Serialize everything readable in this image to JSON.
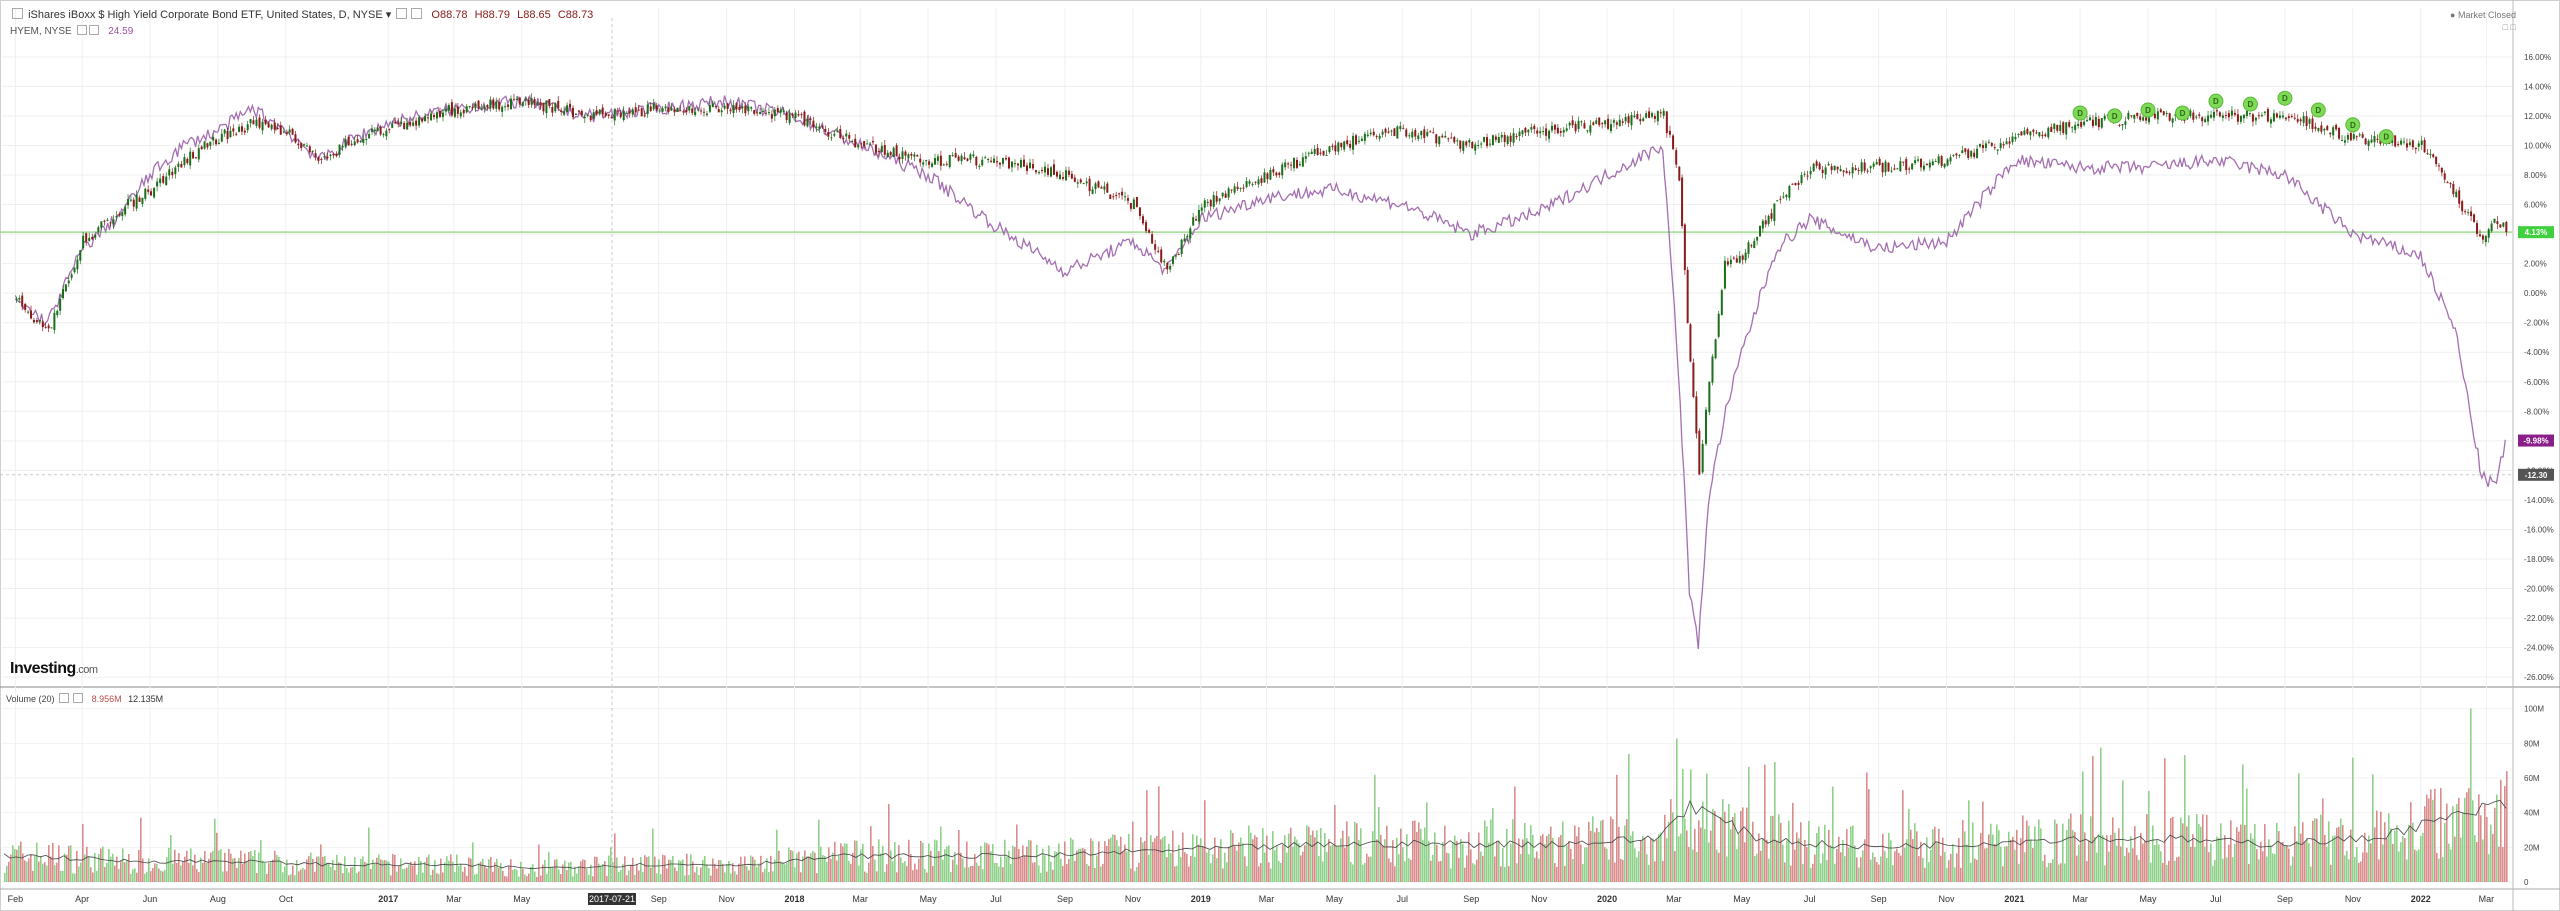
{
  "header": {
    "symbol_title": "iShares iBoxx $ High Yield Corporate Bond ETF, United States, D, NYSE",
    "open": "O88.78",
    "high": "H88.79",
    "low": "L88.65",
    "close": "C88.73",
    "compare_symbol": "HYEM, NYSE",
    "compare_value": "24.59",
    "market_status": "Market Closed"
  },
  "brand": {
    "name": "Investing",
    "domain": ".com"
  },
  "volume_header": {
    "label": "Volume (20)",
    "value": "8.956M",
    "ma": "12.135M"
  },
  "colors": {
    "up": "#1b6e1b",
    "down": "#8b1a1a",
    "compare": "#a36fb0",
    "vol_up": "#8fd18a",
    "vol_down": "#d98c8c",
    "hline": "#9edb8f",
    "dividend": "#7ed957"
  },
  "chart_data": [
    {
      "type": "line",
      "series": [
        {
          "name": "iShares iBoxx $ High Yield Corporate Bond ETF",
          "x": [
            "2016-02-01",
            "2016-03-01",
            "2016-04-01",
            "2016-05-01",
            "2016-06-01",
            "2016-07-01",
            "2016-08-01",
            "2016-09-01",
            "2016-10-01",
            "2016-11-01",
            "2016-12-01",
            "2017-01-01",
            "2017-03-01",
            "2017-05-01",
            "2017-07-01",
            "2017-09-01",
            "2017-11-01",
            "2018-01-01",
            "2018-03-01",
            "2018-05-01",
            "2018-07-01",
            "2018-09-01",
            "2018-11-01",
            "2018-12-01",
            "2019-01-01",
            "2019-03-01",
            "2019-05-01",
            "2019-07-01",
            "2019-09-01",
            "2019-11-01",
            "2020-01-01",
            "2020-02-20",
            "2020-03-05",
            "2020-03-15",
            "2020-03-23",
            "2020-04-01",
            "2020-04-15",
            "2020-05-01",
            "2020-06-01",
            "2020-07-01",
            "2020-09-01",
            "2020-11-01",
            "2021-01-01",
            "2021-03-01",
            "2021-05-01",
            "2021-07-01",
            "2021-09-01",
            "2021-11-01",
            "2022-01-01",
            "2022-02-01",
            "2022-02-25",
            "2022-03-10",
            "2022-03-18"
          ],
          "y": [
            -0.5,
            -2.5,
            3.5,
            5.5,
            7.0,
            9.0,
            10.5,
            11.5,
            11.0,
            9.0,
            10.5,
            11.0,
            12.5,
            13.0,
            12.0,
            12.5,
            12.5,
            12.0,
            10.0,
            9.0,
            9.0,
            8.0,
            6.0,
            1.5,
            6.0,
            8.0,
            10.0,
            11.0,
            10.0,
            11.0,
            11.5,
            12.0,
            8.0,
            -5.0,
            -12.0,
            -6.0,
            2.0,
            2.5,
            6.0,
            8.5,
            8.5,
            9.0,
            10.5,
            11.5,
            12.0,
            12.0,
            12.0,
            10.5,
            10.0,
            6.5,
            3.5,
            5.0,
            4.2
          ]
        },
        {
          "name": "HYEM, NYSE",
          "x": [
            "2016-02-01",
            "2016-03-01",
            "2016-04-01",
            "2016-05-01",
            "2016-06-01",
            "2016-07-01",
            "2016-08-01",
            "2016-09-01",
            "2016-10-01",
            "2016-11-01",
            "2016-12-01",
            "2017-01-01",
            "2017-03-01",
            "2017-05-01",
            "2017-07-01",
            "2017-09-01",
            "2017-11-01",
            "2018-01-01",
            "2018-03-01",
            "2018-05-01",
            "2018-07-01",
            "2018-09-01",
            "2018-11-01",
            "2018-12-01",
            "2019-01-01",
            "2019-03-01",
            "2019-05-01",
            "2019-07-01",
            "2019-09-01",
            "2019-11-01",
            "2020-01-01",
            "2020-02-20",
            "2020-03-05",
            "2020-03-15",
            "2020-03-23",
            "2020-04-01",
            "2020-04-15",
            "2020-05-01",
            "2020-06-01",
            "2020-07-01",
            "2020-09-01",
            "2020-11-01",
            "2021-01-01",
            "2021-03-01",
            "2021-05-01",
            "2021-07-01",
            "2021-09-01",
            "2021-11-01",
            "2022-01-01",
            "2022-02-01",
            "2022-02-25",
            "2022-03-10",
            "2022-03-18"
          ],
          "y": [
            -0.5,
            -2.0,
            3.0,
            5.0,
            8.0,
            10.0,
            11.0,
            12.5,
            11.0,
            9.0,
            10.5,
            11.5,
            12.5,
            13.0,
            12.0,
            12.5,
            13.0,
            12.0,
            10.0,
            8.0,
            4.5,
            1.5,
            3.5,
            1.5,
            5.0,
            6.5,
            7.0,
            6.0,
            4.0,
            5.5,
            8.0,
            10.0,
            -5.0,
            -20.0,
            -24.0,
            -14.0,
            -8.5,
            -4.0,
            3.0,
            5.0,
            3.0,
            3.5,
            9.0,
            8.5,
            8.5,
            9.0,
            8.0,
            4.0,
            2.5,
            -2.5,
            -12.5,
            -13.0,
            -10.0
          ]
        }
      ],
      "x_ticks": [
        "Feb",
        "Apr",
        "Jun",
        "Aug",
        "Oct",
        "2017",
        "Mar",
        "May",
        "Sep",
        "Nov",
        "2018",
        "Mar",
        "May",
        "Jul",
        "Sep",
        "Nov",
        "2019",
        "Mar",
        "May",
        "Jul",
        "Sep",
        "Nov",
        "2020",
        "Mar",
        "May",
        "Jul",
        "Sep",
        "Nov",
        "2021",
        "Mar",
        "May",
        "Jul",
        "Sep",
        "Nov",
        "2022",
        "Mar"
      ],
      "crosshair_label": "2017-07-21",
      "y_ticks": [
        "16.00%",
        "14.00%",
        "12.00%",
        "10.00%",
        "8.00%",
        "6.00%",
        "4.00%",
        "2.00%",
        "0.00%",
        "-2.00%",
        "-4.00%",
        "-6.00%",
        "-8.00%",
        "-10.00%",
        "-12.00%",
        "-14.00%",
        "-16.00%",
        "-18.00%",
        "-20.00%",
        "-22.00%",
        "-24.00%",
        "-26.00%"
      ],
      "ylim": [
        -26.6,
        16.6
      ],
      "grid": true,
      "horizontal_line": {
        "value": 4.13,
        "label": "4.13%"
      },
      "last_compare_label": {
        "value": -9.98,
        "label": "-9.98%"
      },
      "last_crosshair_label": {
        "value": -12.3,
        "label": "-12.30"
      },
      "dividend_markers": {
        "symbol": "D",
        "x": [
          "2021-03-01",
          "2021-04-01",
          "2021-05-01",
          "2021-06-01",
          "2021-07-01",
          "2021-08-01",
          "2021-09-01",
          "2021-10-01",
          "2021-11-01",
          "2021-12-01"
        ],
        "y": [
          12.2,
          12.0,
          12.4,
          12.2,
          13.0,
          12.8,
          13.2,
          12.4,
          11.4,
          10.6
        ]
      }
    },
    {
      "type": "bar",
      "title": "Volume (20)",
      "y_ticks": [
        "100M",
        "80M",
        "60M",
        "40M",
        "20M",
        "0"
      ],
      "ylim": [
        0,
        105
      ],
      "monthly_x": [
        "2016-02",
        "2016-05",
        "2016-08",
        "2016-11",
        "2017-02",
        "2017-05",
        "2017-08",
        "2017-11",
        "2018-02",
        "2018-05",
        "2018-08",
        "2018-11",
        "2019-02",
        "2019-05",
        "2019-08",
        "2019-11",
        "2020-02",
        "2020-03",
        "2020-05",
        "2020-08",
        "2020-11",
        "2021-02",
        "2021-05",
        "2021-08",
        "2021-11",
        "2022-02",
        "2022-03"
      ],
      "ma_values": [
        15,
        12,
        12,
        10,
        10,
        8,
        10,
        10,
        15,
        15,
        15,
        18,
        20,
        22,
        22,
        22,
        25,
        45,
        25,
        20,
        22,
        25,
        25,
        22,
        25,
        40,
        45
      ]
    }
  ]
}
